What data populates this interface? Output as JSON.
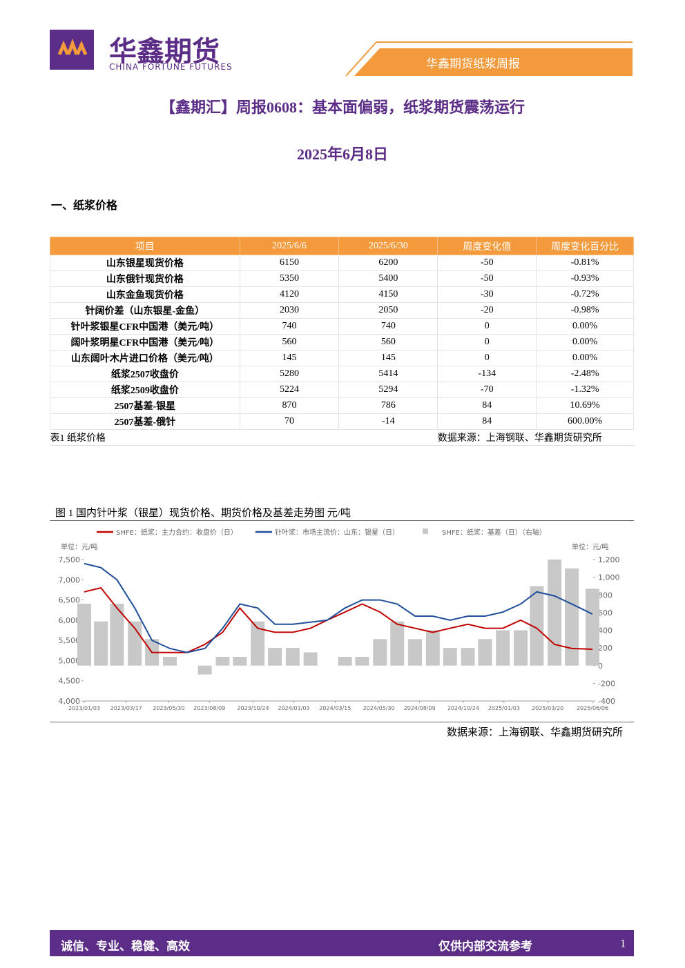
{
  "header": {
    "logo_cn": "华鑫期货",
    "logo_en": "CHINA FORTUNE FUTURES",
    "report": "华鑫期货纸浆周报"
  },
  "title": "【鑫期汇】周报0608：基本面偏弱，纸浆期货震荡运行",
  "date": "2025年6月8日",
  "section": "一、纸浆价格",
  "table": {
    "header": [
      "项目",
      "2025/6/6",
      "2025/6/30",
      "周度变化值",
      "周度变化百分比"
    ],
    "rows": [
      [
        "山东银星现货价格",
        "6150",
        "6200",
        "-50",
        "-0.81%"
      ],
      [
        "山东俄针现货价格",
        "5350",
        "5400",
        "-50",
        "-0.93%"
      ],
      [
        "山东金鱼现货价格",
        "4120",
        "4150",
        "-30",
        "-0.72%"
      ],
      [
        "针阔价差（山东银星-金鱼）",
        "2030",
        "2050",
        "-20",
        "-0.98%"
      ],
      [
        "针叶浆银星CFR中国港（美元/吨）",
        "740",
        "740",
        "0",
        "0.00%"
      ],
      [
        "阔叶浆明星CFR中国港（美元/吨）",
        "560",
        "560",
        "0",
        "0.00%"
      ],
      [
        "山东阔叶木片进口价格（美元/吨）",
        "145",
        "145",
        "0",
        "0.00%"
      ],
      [
        "纸浆2507收盘价",
        "5280",
        "5414",
        "-134",
        "-2.48%"
      ],
      [
        "纸浆2509收盘价",
        "5224",
        "5294",
        "-70",
        "-1.32%"
      ],
      [
        "2507基差-银星",
        "870",
        "786",
        "84",
        "10.69%"
      ],
      [
        "2507基差-俄针",
        "70",
        "-14",
        "84",
        "600.00%"
      ]
    ],
    "caption": "表1 纸浆价格",
    "source": "数据来源：上海钢联、华鑫期货研究所"
  },
  "figure": {
    "caption": "图 1 国内针叶浆（银星）现货价格、期货价格及基差走势图 元/吨",
    "source": "数据来源：上海钢联、华鑫期货研究所"
  },
  "chart_data": {
    "type": "line",
    "y_unit": "单位：元/吨",
    "y2_unit": "单位：元/吨",
    "x": [
      "2023/01/03",
      "2023/02/01",
      "2023/03/01",
      "2023/04/01",
      "2023/05/01",
      "2023/06/01",
      "2023/07/01",
      "2023/08/01",
      "2023/09/01",
      "2023/10/01",
      "2023/11/01",
      "2023/12/01",
      "2024/01/01",
      "2024/02/01",
      "2024/03/01",
      "2024/04/01",
      "2024/05/01",
      "2024/06/01",
      "2024/07/01",
      "2024/08/01",
      "2024/09/01",
      "2024/10/01",
      "2024/11/01",
      "2024/12/01",
      "2025/01/01",
      "2025/02/01",
      "2025/03/01",
      "2025/04/01",
      "2025/05/01",
      "2025/06/06"
    ],
    "xlim": [
      "2023/01/03",
      "2025/06/06"
    ],
    "xticks": [
      "2023/01/03",
      "2023/03/17",
      "2023/05/30",
      "2023/08/09",
      "2023/10/24",
      "2024/01/03",
      "2024/03/15",
      "2024/05/30",
      "2024/08/09",
      "2024/10/24",
      "2025/01/03",
      "2025/03/20",
      "2025/06/06"
    ],
    "ylim": [
      4000,
      7500
    ],
    "yticks": [
      {
        "value": 4000,
        "label": "4,000"
      },
      {
        "value": 4500,
        "label": "4,500"
      },
      {
        "value": 5000,
        "label": "5,000"
      },
      {
        "value": 5500,
        "label": "5,500"
      },
      {
        "value": 6000,
        "label": "6,000"
      },
      {
        "value": 6500,
        "label": "6,500"
      },
      {
        "value": 7000,
        "label": "7,000"
      },
      {
        "value": 7500,
        "label": "7,500"
      }
    ],
    "y2lim": [
      -400,
      1200
    ],
    "y2ticks": [
      -400,
      -200,
      0,
      200,
      400,
      600,
      800,
      {
        "value": 1000,
        "label": "1,000"
      },
      {
        "value": 1200,
        "label": "1,200"
      }
    ],
    "series": [
      {
        "name": "SHFE：纸浆：主力合约：收盘价（日）",
        "color": "#c00000",
        "type": "line",
        "values": [
          6700,
          6800,
          6300,
          5800,
          5200,
          5200,
          5200,
          5400,
          5700,
          6300,
          5800,
          5700,
          5700,
          5800,
          6000,
          6200,
          6400,
          6200,
          5900,
          5800,
          5700,
          5800,
          5900,
          5800,
          5800,
          6000,
          5800,
          5400,
          5300,
          5280
        ]
      },
      {
        "name": "针叶浆：市场主流价：山东：银星（日）",
        "color": "#1f4e9a",
        "type": "line",
        "values": [
          7400,
          7300,
          7000,
          6300,
          5500,
          5300,
          5200,
          5300,
          5800,
          6400,
          6300,
          5900,
          5900,
          5950,
          6000,
          6300,
          6500,
          6500,
          6400,
          6100,
          6100,
          6000,
          6100,
          6100,
          6200,
          6400,
          6700,
          6600,
          6400,
          6150
        ]
      },
      {
        "name": "SHFE：纸浆：基差（日）（右轴）",
        "color": "#c8c8c8",
        "type": "bar",
        "axis": "y2",
        "values": [
          700,
          500,
          700,
          500,
          300,
          100,
          0,
          -100,
          100,
          100,
          500,
          200,
          200,
          150,
          0,
          100,
          100,
          300,
          500,
          300,
          400,
          200,
          200,
          300,
          400,
          400,
          900,
          1200,
          1100,
          870
        ]
      }
    ]
  },
  "footer": {
    "left": "诚信、专业、稳健、高效",
    "right": "仅供内部交流参考",
    "page": "1"
  }
}
